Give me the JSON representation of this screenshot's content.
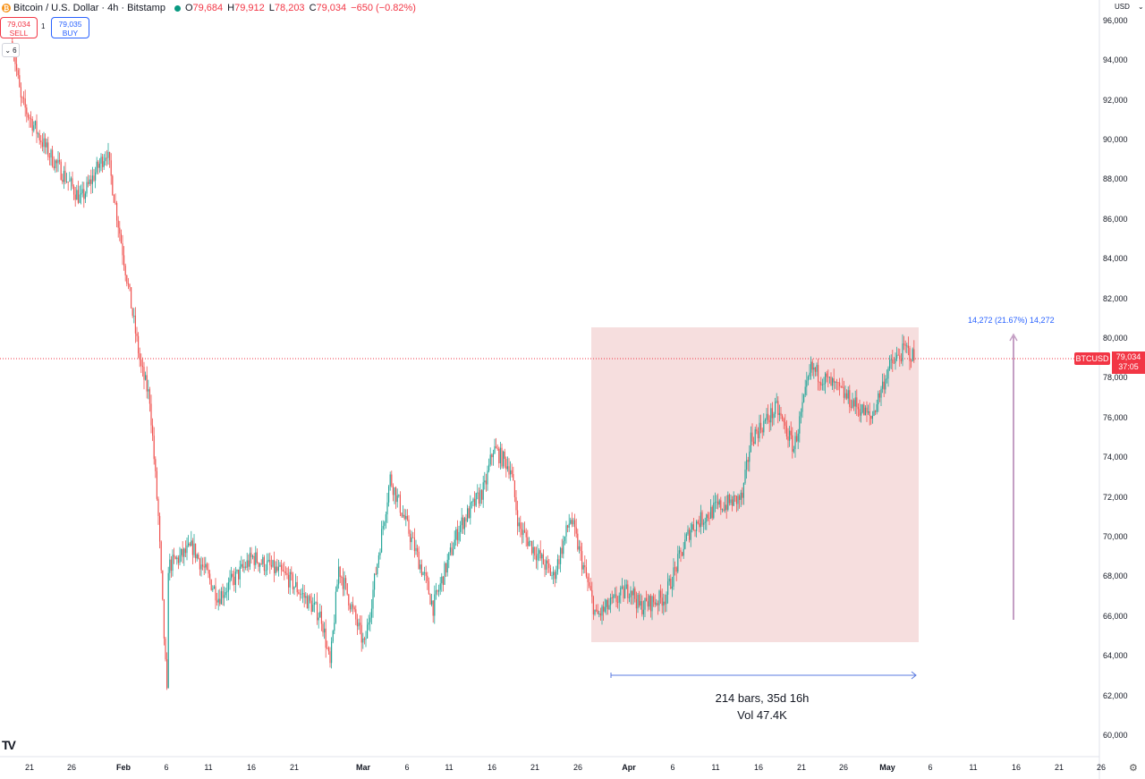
{
  "header": {
    "coin_glyph": "₿",
    "title": "Bitcoin / U.S. Dollar · 4h · Bitstamp",
    "ohlc": [
      {
        "k": "O",
        "v": "79,684"
      },
      {
        "k": "H",
        "v": "79,912"
      },
      {
        "k": "L",
        "v": "78,203"
      },
      {
        "k": "C",
        "v": "79,034"
      }
    ],
    "change": "−650 (−0.82%)"
  },
  "trade": {
    "sell_price": "79,034",
    "sell_label": "SELL",
    "spread": "1",
    "buy_price": "79,035",
    "buy_label": "BUY"
  },
  "collapse_label": "6",
  "currency": "USD",
  "price_tag": {
    "symbol": "BTCUSD",
    "price": "79,034",
    "countdown": "37:05"
  },
  "measure": {
    "label": "14,272 (21.67%) 14,272",
    "bars": "214 bars, 35d 16h",
    "vol": "Vol 47.4K"
  },
  "y_axis": [
    "60,000",
    "62,000",
    "64,000",
    "66,000",
    "68,000",
    "70,000",
    "72,000",
    "74,000",
    "76,000",
    "78,000",
    "80,000",
    "82,000",
    "84,000",
    "86,000",
    "88,000",
    "90,000",
    "92,000",
    "94,000",
    "96,000"
  ],
  "x_axis": [
    {
      "label": "21",
      "bold": false
    },
    {
      "label": "26",
      "bold": false
    },
    {
      "label": "Feb",
      "bold": true
    },
    {
      "label": "6",
      "bold": false
    },
    {
      "label": "11",
      "bold": false
    },
    {
      "label": "16",
      "bold": false
    },
    {
      "label": "21",
      "bold": false
    },
    {
      "label": "Mar",
      "bold": true
    },
    {
      "label": "6",
      "bold": false
    },
    {
      "label": "11",
      "bold": false
    },
    {
      "label": "16",
      "bold": false
    },
    {
      "label": "21",
      "bold": false
    },
    {
      "label": "26",
      "bold": false
    },
    {
      "label": "Apr",
      "bold": true
    },
    {
      "label": "6",
      "bold": false
    },
    {
      "label": "11",
      "bold": false
    },
    {
      "label": "16",
      "bold": false
    },
    {
      "label": "21",
      "bold": false
    },
    {
      "label": "26",
      "bold": false
    },
    {
      "label": "May",
      "bold": true
    },
    {
      "label": "6",
      "bold": false
    },
    {
      "label": "11",
      "bold": false
    },
    {
      "label": "16",
      "bold": false
    },
    {
      "label": "21",
      "bold": false
    },
    {
      "label": "26",
      "bold": false
    }
  ],
  "colors": {
    "up": "#26a69a",
    "down": "#ef5350",
    "range_fill": "#f6dede",
    "accent": "#2962ff",
    "price_line": "#f23645"
  },
  "chart_data": {
    "type": "candlestick",
    "timeframe": "4h",
    "y_range": [
      60000,
      96000
    ],
    "last_close": 79034,
    "price_keypoints": [
      [
        "Jan 19",
        95000
      ],
      [
        "Jan 20",
        92000
      ],
      [
        "Jan 23",
        89500
      ],
      [
        "Jan 27",
        87000
      ],
      [
        "Jan 30",
        89500
      ],
      [
        "Feb 1",
        84000
      ],
      [
        "Feb 3",
        78500
      ],
      [
        "Feb 4",
        77000
      ],
      [
        "Feb 5",
        71000
      ],
      [
        "Feb 6",
        62000
      ],
      [
        "Feb 6",
        68500
      ],
      [
        "Feb 9",
        69500
      ],
      [
        "Feb 12",
        67000
      ],
      [
        "Feb 16",
        69000
      ],
      [
        "Feb 20",
        68000
      ],
      [
        "Feb 24",
        66000
      ],
      [
        "Feb 25",
        63500
      ],
      [
        "Feb 26",
        68500
      ],
      [
        "Mar 1",
        64500
      ],
      [
        "Mar 4",
        73000
      ],
      [
        "Mar 8",
        68000
      ],
      [
        "Mar 9",
        66500
      ],
      [
        "Mar 12",
        70500
      ],
      [
        "Mar 15",
        72500
      ],
      [
        "Mar 16",
        74500
      ],
      [
        "Mar 18",
        73500
      ],
      [
        "Mar 19",
        70500
      ],
      [
        "Mar 23",
        68000
      ],
      [
        "Mar 25",
        71000
      ],
      [
        "Mar 28",
        66000
      ],
      [
        "Apr 1",
        67500
      ],
      [
        "Apr 2",
        66500
      ],
      [
        "Apr 5",
        67000
      ],
      [
        "Apr 8",
        70500
      ],
      [
        "Apr 11",
        71500
      ],
      [
        "Apr 14",
        72000
      ],
      [
        "Apr 15",
        75000
      ],
      [
        "Apr 18",
        76500
      ],
      [
        "Apr 20",
        74500
      ],
      [
        "Apr 22",
        78500
      ],
      [
        "Apr 25",
        77500
      ],
      [
        "Apr 29",
        76000
      ],
      [
        "May 1",
        78500
      ],
      [
        "May 3",
        79500
      ],
      [
        "May 4",
        79034
      ]
    ]
  }
}
